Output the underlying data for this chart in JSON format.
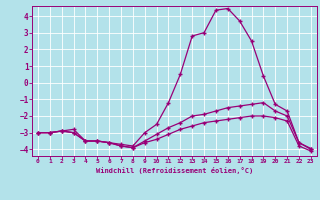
{
  "xlabel": "Windchill (Refroidissement éolien,°C)",
  "background_color": "#b3e2ea",
  "grid_color": "#c8ecf0",
  "line_color": "#990077",
  "spine_color": "#7a7a7a",
  "x_ticks": [
    0,
    1,
    2,
    3,
    4,
    5,
    6,
    7,
    8,
    9,
    10,
    11,
    12,
    13,
    14,
    15,
    16,
    17,
    18,
    19,
    20,
    21,
    22,
    23
  ],
  "y_ticks": [
    -4,
    -3,
    -2,
    -1,
    0,
    1,
    2,
    3,
    4
  ],
  "xlim": [
    -0.5,
    23.5
  ],
  "ylim": [
    -4.4,
    4.6
  ],
  "line1_x": [
    0,
    1,
    2,
    3,
    4,
    5,
    6,
    7,
    8,
    9,
    10,
    11,
    12,
    13,
    14,
    15,
    16,
    17,
    18,
    19,
    20,
    21,
    22,
    23
  ],
  "line1_y": [
    -3.0,
    -3.0,
    -2.9,
    -2.8,
    -3.5,
    -3.5,
    -3.6,
    -3.7,
    -3.8,
    -3.0,
    -2.5,
    -1.2,
    0.5,
    2.8,
    3.0,
    4.35,
    4.45,
    3.7,
    2.5,
    0.4,
    -1.3,
    -1.7,
    -3.6,
    -3.95
  ],
  "line2_x": [
    0,
    1,
    2,
    3,
    4,
    5,
    6,
    7,
    8,
    9,
    10,
    11,
    12,
    13,
    14,
    15,
    16,
    17,
    18,
    19,
    20,
    21,
    22,
    23
  ],
  "line2_y": [
    -3.0,
    -3.0,
    -2.9,
    -3.0,
    -3.5,
    -3.5,
    -3.6,
    -3.8,
    -3.9,
    -3.5,
    -3.1,
    -2.7,
    -2.4,
    -2.0,
    -1.9,
    -1.7,
    -1.5,
    -1.4,
    -1.3,
    -1.2,
    -1.7,
    -2.0,
    -3.6,
    -4.0
  ],
  "line3_x": [
    0,
    1,
    2,
    3,
    4,
    5,
    6,
    7,
    8,
    9,
    10,
    11,
    12,
    13,
    14,
    15,
    16,
    17,
    18,
    19,
    20,
    21,
    22,
    23
  ],
  "line3_y": [
    -3.0,
    -3.0,
    -2.9,
    -3.0,
    -3.5,
    -3.5,
    -3.6,
    -3.8,
    -3.9,
    -3.6,
    -3.4,
    -3.1,
    -2.8,
    -2.6,
    -2.4,
    -2.3,
    -2.2,
    -2.1,
    -2.0,
    -2.0,
    -2.1,
    -2.3,
    -3.8,
    -4.1
  ]
}
